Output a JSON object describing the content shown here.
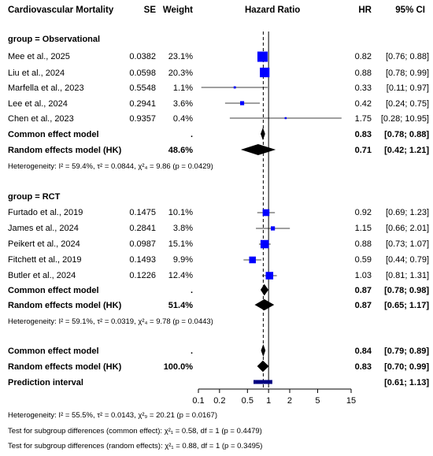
{
  "header": {
    "title": "Cardiovascular Mortality",
    "se": "SE",
    "weight": "Weight",
    "hazard_ratio": "Hazard Ratio",
    "hr": "HR",
    "ci": "95% CI"
  },
  "groups": [
    {
      "label": "group = Observational",
      "studies": [
        {
          "study": "Mee et al., 2025",
          "se": "0.0382",
          "weight": "23.1%",
          "hr_text": "0.82",
          "ci_text": "[0.76; 0.88]"
        },
        {
          "study": "Liu et al., 2024",
          "se": "0.0598",
          "weight": "20.3%",
          "hr_text": "0.88",
          "ci_text": "[0.78; 0.99]"
        },
        {
          "study": "Marfella et al., 2023",
          "se": "0.5548",
          "weight": "1.1%",
          "hr_text": "0.33",
          "ci_text": "[0.11; 0.97]"
        },
        {
          "study": "Lee et al., 2024",
          "se": "0.2941",
          "weight": "3.6%",
          "hr_text": "0.42",
          "ci_text": "[0.24; 0.75]"
        },
        {
          "study": "Chen et al., 2023",
          "se": "0.9357",
          "weight": "0.4%",
          "hr_text": "1.75",
          "ci_text": "[0.28; 10.95]"
        }
      ],
      "common": {
        "label": "Common effect model",
        "weight": ".",
        "hr_text": "0.83",
        "ci_text": "[0.78; 0.88]"
      },
      "random": {
        "label": "Random effects model (HK)",
        "weight": "48.6%",
        "hr_text": "0.71",
        "ci_text": "[0.42; 1.21]"
      },
      "het_prefix": "Heterogeneity: ",
      "het_i2": "I² = 59.4%, τ² = 0.0844, χ²₄ = 9.86 (p = 0.0429)"
    },
    {
      "label": "group = RCT",
      "studies": [
        {
          "study": "Furtado et al., 2019",
          "se": "0.1475",
          "weight": "10.1%",
          "hr_text": "0.92",
          "ci_text": "[0.69; 1.23]"
        },
        {
          "study": "James et al., 2024",
          "se": "0.2841",
          "weight": "3.8%",
          "hr_text": "1.15",
          "ci_text": "[0.66; 2.01]"
        },
        {
          "study": "Peikert et al., 2024",
          "se": "0.0987",
          "weight": "15.1%",
          "hr_text": "0.88",
          "ci_text": "[0.73; 1.07]"
        },
        {
          "study": "Fitchett et al., 2019",
          "se": "0.1493",
          "weight": "9.9%",
          "hr_text": "0.59",
          "ci_text": "[0.44; 0.79]"
        },
        {
          "study": "Butler et al., 2024",
          "se": "0.1226",
          "weight": "12.4%",
          "hr_text": "1.03",
          "ci_text": "[0.81; 1.31]"
        }
      ],
      "common": {
        "label": "Common effect model",
        "weight": ".",
        "hr_text": "0.87",
        "ci_text": "[0.78; 0.98]"
      },
      "random": {
        "label": "Random effects model (HK)",
        "weight": "51.4%",
        "hr_text": "0.87",
        "ci_text": "[0.65; 1.17]"
      },
      "het_prefix": "Heterogeneity: ",
      "het_i2": "I² = 59.1%, τ² = 0.0319, χ²₄ = 9.78 (p = 0.0443)"
    }
  ],
  "overall": {
    "common": {
      "label": "Common effect model",
      "weight": ".",
      "hr_text": "0.84",
      "ci_text": "[0.79; 0.89]"
    },
    "random": {
      "label": "Random effects model (HK)",
      "weight": "100.0%",
      "hr_text": "0.83",
      "ci_text": "[0.70; 0.99]"
    },
    "prediction": {
      "label": "Prediction interval",
      "ci_text": "[0.61; 1.13]"
    }
  },
  "footer": {
    "het": "Heterogeneity: I² = 55.5%, τ² = 0.0143, χ²₉ = 20.21 (p = 0.0167)",
    "sub_common": "Test for subgroup differences (common effect): χ²₁ = 0.58, df = 1 (p = 0.4479)",
    "sub_random": "Test for subgroup differences (random effects): χ²₁ = 0.88, df = 1 (p = 0.3495)"
  },
  "chart_data": {
    "type": "forest",
    "x_scale": "log",
    "x_ticks": [
      0.1,
      0.2,
      0.5,
      1,
      2,
      5,
      15
    ],
    "x_tick_labels": [
      "0.1",
      "0.2",
      "0.5",
      "1",
      "2",
      "5",
      "15"
    ],
    "xlim": [
      0.1,
      15
    ],
    "reference_line": 1,
    "colors": {
      "study_box": "#0000ff",
      "diamond": "#000000",
      "prediction": "#000080"
    },
    "studies": [
      {
        "group": "Observational",
        "hr": 0.82,
        "lower": 0.76,
        "upper": 0.88,
        "weight": 23.1
      },
      {
        "group": "Observational",
        "hr": 0.88,
        "lower": 0.78,
        "upper": 0.99,
        "weight": 20.3
      },
      {
        "group": "Observational",
        "hr": 0.33,
        "lower": 0.11,
        "upper": 0.97,
        "weight": 1.1
      },
      {
        "group": "Observational",
        "hr": 0.42,
        "lower": 0.24,
        "upper": 0.75,
        "weight": 3.6
      },
      {
        "group": "Observational",
        "hr": 1.75,
        "lower": 0.28,
        "upper": 10.95,
        "weight": 0.4
      },
      {
        "group": "RCT",
        "hr": 0.92,
        "lower": 0.69,
        "upper": 1.23,
        "weight": 10.1
      },
      {
        "group": "RCT",
        "hr": 1.15,
        "lower": 0.66,
        "upper": 2.01,
        "weight": 3.8
      },
      {
        "group": "RCT",
        "hr": 0.88,
        "lower": 0.73,
        "upper": 1.07,
        "weight": 15.1
      },
      {
        "group": "RCT",
        "hr": 0.59,
        "lower": 0.44,
        "upper": 0.79,
        "weight": 9.9
      },
      {
        "group": "RCT",
        "hr": 1.03,
        "lower": 0.81,
        "upper": 1.31,
        "weight": 12.4
      }
    ],
    "summaries": [
      {
        "group": "Observational",
        "model": "common",
        "hr": 0.83,
        "lower": 0.78,
        "upper": 0.88
      },
      {
        "group": "Observational",
        "model": "random",
        "hr": 0.71,
        "lower": 0.42,
        "upper": 1.21
      },
      {
        "group": "RCT",
        "model": "common",
        "hr": 0.87,
        "lower": 0.78,
        "upper": 0.98
      },
      {
        "group": "RCT",
        "model": "random",
        "hr": 0.87,
        "lower": 0.65,
        "upper": 1.17
      },
      {
        "group": "Overall",
        "model": "common",
        "hr": 0.84,
        "lower": 0.79,
        "upper": 0.89
      },
      {
        "group": "Overall",
        "model": "random",
        "hr": 0.83,
        "lower": 0.7,
        "upper": 0.99
      }
    ],
    "prediction_interval": {
      "lower": 0.61,
      "upper": 1.13
    },
    "common_effect_dashed_line": 0.84
  }
}
